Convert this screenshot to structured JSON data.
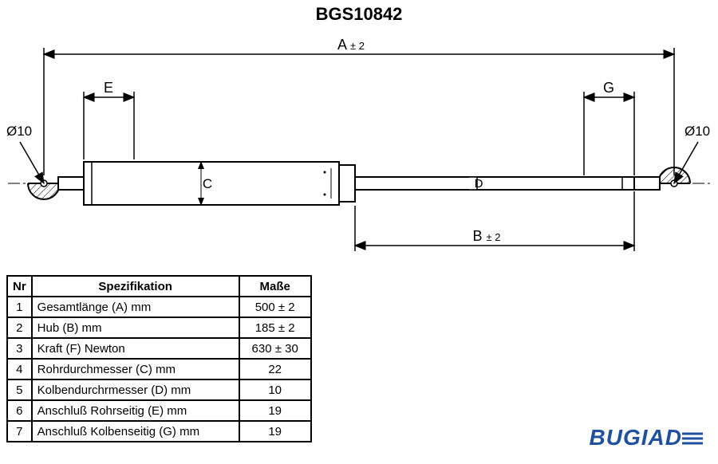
{
  "title": "BGS10842",
  "diagram": {
    "dim_A_label": "A",
    "dim_A_tol": "± 2",
    "dim_B_label": "B",
    "dim_B_tol": "± 2",
    "dim_C_label": "C",
    "dim_D_label": "D",
    "dim_E_label": "E",
    "dim_G_label": "G",
    "dia_left": "Ø10",
    "dia_right": "Ø10",
    "colors": {
      "stroke": "#000000",
      "bg": "#ffffff",
      "hatch": "#000000"
    },
    "line_width_main": 2,
    "line_width_thin": 1
  },
  "table": {
    "headers": {
      "nr": "Nr",
      "spec": "Spezifikation",
      "mass": "Maße"
    },
    "rows": [
      {
        "nr": "1",
        "spec": "Gesamtlänge (A) mm",
        "mass": "500 ± 2"
      },
      {
        "nr": "2",
        "spec": "Hub (B)  mm",
        "mass": "185 ± 2"
      },
      {
        "nr": "3",
        "spec": "Kraft (F) Newton",
        "mass": "630 ± 30"
      },
      {
        "nr": "4",
        "spec": "Rohrdurchmesser (C) mm",
        "mass": "22"
      },
      {
        "nr": "5",
        "spec": "Kolbendurchrmesser (D) mm",
        "mass": "10"
      },
      {
        "nr": "6",
        "spec": "Anschluß Rohrseitig (E) mm",
        "mass": "19"
      },
      {
        "nr": "7",
        "spec": "Anschluß Kolbenseitig (G) mm",
        "mass": "19"
      }
    ]
  },
  "logo": {
    "text": "BUGIAD",
    "color": "#2050a0"
  }
}
